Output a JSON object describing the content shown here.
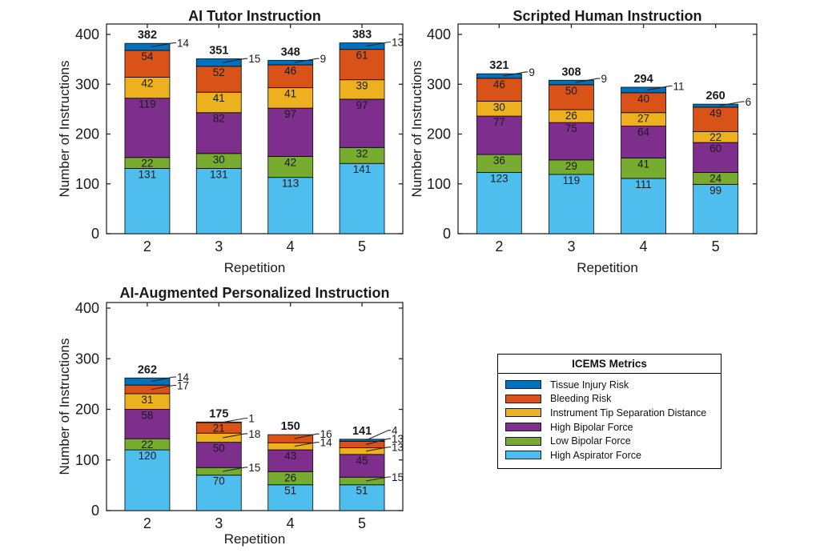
{
  "figure": {
    "background": "#ffffff",
    "axis_color": "#262626",
    "text_color": "#1a1a1a"
  },
  "legend": {
    "title": "ICEMS Metrics",
    "items": [
      {
        "label": "Tissue Injury Risk",
        "color": "#0072BD"
      },
      {
        "label": "Bleeding Risk",
        "color": "#D95319"
      },
      {
        "label": "Instrument Tip Separation Distance",
        "color": "#EDB120"
      },
      {
        "label": "High Bipolar Force",
        "color": "#7E2F8E"
      },
      {
        "label": "Low Bipolar Force",
        "color": "#77AC30"
      },
      {
        "label": "High Aspirator Force",
        "color": "#4DBEEE"
      }
    ]
  },
  "chart_data": [
    {
      "type": "bar",
      "stacked": true,
      "title": "AI Tutor Instruction",
      "xlabel": "Repetition",
      "ylabel": "Number of Instructions",
      "categories": [
        "2",
        "3",
        "4",
        "5"
      ],
      "yticks": [
        0,
        100,
        200,
        300,
        400
      ],
      "ylim": [
        0,
        420
      ],
      "grid": false,
      "series": [
        {
          "name": "High Aspirator Force",
          "color": "#4DBEEE",
          "values": [
            131,
            131,
            113,
            141
          ]
        },
        {
          "name": "Low Bipolar Force",
          "color": "#77AC30",
          "values": [
            22,
            30,
            42,
            32
          ]
        },
        {
          "name": "High Bipolar Force",
          "color": "#7E2F8E",
          "values": [
            119,
            82,
            97,
            97
          ]
        },
        {
          "name": "Instrument Tip Separation Distance",
          "color": "#EDB120",
          "values": [
            42,
            41,
            41,
            39
          ]
        },
        {
          "name": "Bleeding Risk",
          "color": "#D95319",
          "values": [
            54,
            52,
            46,
            61
          ]
        },
        {
          "name": "Tissue Injury Risk",
          "color": "#0072BD",
          "values": [
            14,
            15,
            9,
            13
          ]
        }
      ],
      "totals": [
        382,
        351,
        348,
        383
      ],
      "callout_series_indices": [
        [
          5
        ],
        [
          5
        ],
        [
          5
        ],
        [
          5
        ]
      ]
    },
    {
      "type": "bar",
      "stacked": true,
      "title": "Scripted Human Instruction",
      "xlabel": "Repetition",
      "ylabel": "Number of Instructions",
      "categories": [
        "2",
        "3",
        "4",
        "5"
      ],
      "yticks": [
        0,
        100,
        200,
        300,
        400
      ],
      "ylim": [
        0,
        420
      ],
      "grid": false,
      "series": [
        {
          "name": "High Aspirator Force",
          "color": "#4DBEEE",
          "values": [
            123,
            119,
            111,
            99
          ]
        },
        {
          "name": "Low Bipolar Force",
          "color": "#77AC30",
          "values": [
            36,
            29,
            41,
            24
          ]
        },
        {
          "name": "High Bipolar Force",
          "color": "#7E2F8E",
          "values": [
            77,
            75,
            64,
            60
          ]
        },
        {
          "name": "Instrument Tip Separation Distance",
          "color": "#EDB120",
          "values": [
            30,
            26,
            27,
            22
          ]
        },
        {
          "name": "Bleeding Risk",
          "color": "#D95319",
          "values": [
            46,
            50,
            40,
            49
          ]
        },
        {
          "name": "Tissue Injury Risk",
          "color": "#0072BD",
          "values": [
            9,
            9,
            11,
            6
          ]
        }
      ],
      "totals": [
        321,
        308,
        294,
        260
      ],
      "callout_series_indices": [
        [
          5
        ],
        [
          5
        ],
        [
          5
        ],
        [
          5
        ]
      ]
    },
    {
      "type": "bar",
      "stacked": true,
      "title": "AI-Augmented Personalized Instruction",
      "xlabel": "Repetition",
      "ylabel": "Number of Instructions",
      "categories": [
        "2",
        "3",
        "4",
        "5"
      ],
      "yticks": [
        0,
        100,
        200,
        300,
        400
      ],
      "ylim": [
        0,
        415
      ],
      "grid": false,
      "series": [
        {
          "name": "High Aspirator Force",
          "color": "#4DBEEE",
          "values": [
            120,
            70,
            51,
            51
          ]
        },
        {
          "name": "Low Bipolar Force",
          "color": "#77AC30",
          "values": [
            22,
            15,
            26,
            15
          ]
        },
        {
          "name": "High Bipolar Force",
          "color": "#7E2F8E",
          "values": [
            58,
            50,
            43,
            45
          ]
        },
        {
          "name": "Instrument Tip Separation Distance",
          "color": "#EDB120",
          "values": [
            31,
            18,
            14,
            13
          ]
        },
        {
          "name": "Bleeding Risk",
          "color": "#D95319",
          "values": [
            17,
            21,
            16,
            13
          ]
        },
        {
          "name": "Tissue Injury Risk",
          "color": "#0072BD",
          "values": [
            14,
            1,
            0,
            4
          ]
        }
      ],
      "totals": [
        262,
        175,
        150,
        141
      ],
      "callout_series_indices": [
        [
          4,
          5
        ],
        [
          1,
          3,
          5
        ],
        [
          3,
          4
        ],
        [
          1,
          3,
          4,
          5
        ]
      ]
    }
  ]
}
